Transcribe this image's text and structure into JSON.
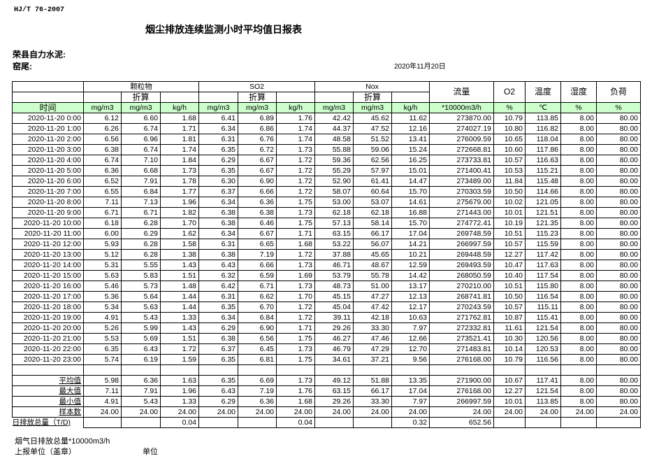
{
  "header": {
    "standard": "HJ/T  76-2007",
    "title": "烟尘排放连续监测小时平均值日报表",
    "company": "荣县自力水泥:",
    "kiln": "窑尾:",
    "date": "2020年11月20日"
  },
  "table": {
    "groups": {
      "particulate": "颗粒物",
      "so2": "SO2",
      "nox": "Nox",
      "flow": "流量",
      "o2": "O2",
      "temp": "温度",
      "humidity": "湿度",
      "load": "负荷"
    },
    "converted": "折算",
    "units": [
      "时间",
      "mg/m3",
      "mg/m3",
      "kg/h",
      "mg/m3",
      "mg/m3",
      "kg/h",
      "mg/m3",
      "mg/m3",
      "kg/h",
      "*10000m3/h",
      "%",
      "℃",
      "%",
      "%"
    ],
    "rows": [
      [
        "2020-11-20 0:00",
        "6.12",
        "6.60",
        "1.68",
        "6.41",
        "6.89",
        "1.76",
        "42.42",
        "45.62",
        "11.62",
        "273870.00",
        "10.79",
        "113.85",
        "8.00",
        "80.00"
      ],
      [
        "2020-11-20 1:00",
        "6.26",
        "6.74",
        "1.71",
        "6.34",
        "6.86",
        "1.74",
        "44.37",
        "47.52",
        "12.16",
        "274027.19",
        "10.80",
        "116.82",
        "8.00",
        "80.00"
      ],
      [
        "2020-11-20 2:00",
        "6.56",
        "6.96",
        "1.81",
        "6.31",
        "6.76",
        "1.74",
        "48.58",
        "51.52",
        "13.41",
        "276009.59",
        "10.65",
        "118.04",
        "8.00",
        "80.00"
      ],
      [
        "2020-11-20 3:00",
        "6.38",
        "6.74",
        "1.74",
        "6.35",
        "6.72",
        "1.73",
        "55.88",
        "59.06",
        "15.24",
        "272668.81",
        "10.60",
        "117.86",
        "8.00",
        "80.00"
      ],
      [
        "2020-11-20 4:00",
        "6.74",
        "7.10",
        "1.84",
        "6.29",
        "6.67",
        "1.72",
        "59.36",
        "62.56",
        "16.25",
        "273733.81",
        "10.57",
        "116.63",
        "8.00",
        "80.00"
      ],
      [
        "2020-11-20 5:00",
        "6.36",
        "6.68",
        "1.73",
        "6.35",
        "6.67",
        "1.72",
        "55.29",
        "57.97",
        "15.01",
        "271400.41",
        "10.53",
        "115.21",
        "8.00",
        "80.00"
      ],
      [
        "2020-11-20 6:00",
        "6.52",
        "7.91",
        "1.78",
        "6.30",
        "6.90",
        "1.72",
        "52.90",
        "61.41",
        "14.47",
        "273489.00",
        "11.84",
        "115.48",
        "8.00",
        "80.00"
      ],
      [
        "2020-11-20 7:00",
        "6.55",
        "6.84",
        "1.77",
        "6.37",
        "6.66",
        "1.72",
        "58.07",
        "60.64",
        "15.70",
        "270303.59",
        "10.50",
        "114.66",
        "8.00",
        "80.00"
      ],
      [
        "2020-11-20 8:00",
        "7.11",
        "7.13",
        "1.96",
        "6.34",
        "6.36",
        "1.75",
        "53.00",
        "53.07",
        "14.61",
        "275679.00",
        "10.02",
        "121.05",
        "8.00",
        "80.00"
      ],
      [
        "2020-11-20 9:00",
        "6.71",
        "6.71",
        "1.82",
        "6.38",
        "6.38",
        "1.73",
        "62.18",
        "62.18",
        "16.88",
        "271443.00",
        "10.01",
        "121.51",
        "8.00",
        "80.00"
      ],
      [
        "2020-11-20 10:00",
        "6.18",
        "6.28",
        "1.70",
        "6.38",
        "6.46",
        "1.75",
        "57.13",
        "58.14",
        "15.70",
        "274772.41",
        "10.19",
        "121.35",
        "8.00",
        "80.00"
      ],
      [
        "2020-11-20 11:00",
        "6.00",
        "6.29",
        "1.62",
        "6.34",
        "6.67",
        "1.71",
        "63.15",
        "66.17",
        "17.04",
        "269748.59",
        "10.51",
        "115.23",
        "8.00",
        "80.00"
      ],
      [
        "2020-11-20 12:00",
        "5.93",
        "6.28",
        "1.58",
        "6.31",
        "6.65",
        "1.68",
        "53.22",
        "56.07",
        "14.21",
        "266997.59",
        "10.57",
        "115.59",
        "8.00",
        "80.00"
      ],
      [
        "2020-11-20 13:00",
        "5.12",
        "6.28",
        "1.38",
        "6.38",
        "7.19",
        "1.72",
        "37.88",
        "45.65",
        "10.21",
        "269448.59",
        "12.27",
        "117.42",
        "8.00",
        "80.00"
      ],
      [
        "2020-11-20 14:00",
        "5.31",
        "5.55",
        "1.43",
        "6.43",
        "6.66",
        "1.73",
        "46.71",
        "48.67",
        "12.59",
        "269493.59",
        "10.47",
        "117.63",
        "8.00",
        "80.00"
      ],
      [
        "2020-11-20 15:00",
        "5.63",
        "5.83",
        "1.51",
        "6.32",
        "6.59",
        "1.69",
        "53.79",
        "55.78",
        "14.42",
        "268050.59",
        "10.40",
        "117.54",
        "8.00",
        "80.00"
      ],
      [
        "2020-11-20 16:00",
        "5.46",
        "5.73",
        "1.48",
        "6.42",
        "6.71",
        "1.73",
        "48.73",
        "51.00",
        "13.17",
        "270210.00",
        "10.51",
        "115.80",
        "8.00",
        "80.00"
      ],
      [
        "2020-11-20 17:00",
        "5.36",
        "5.64",
        "1.44",
        "6.31",
        "6.62",
        "1.70",
        "45.15",
        "47.27",
        "12.13",
        "268741.81",
        "10.50",
        "116.54",
        "8.00",
        "80.00"
      ],
      [
        "2020-11-20 18:00",
        "5.34",
        "5.63",
        "1.44",
        "6.35",
        "6.70",
        "1.72",
        "45.04",
        "47.42",
        "12.17",
        "270243.59",
        "10.57",
        "115.11",
        "8.00",
        "80.00"
      ],
      [
        "2020-11-20 19:00",
        "4.91",
        "5.43",
        "1.33",
        "6.34",
        "6.84",
        "1.72",
        "39.11",
        "42.18",
        "10.63",
        "271762.81",
        "10.87",
        "115.41",
        "8.00",
        "80.00"
      ],
      [
        "2020-11-20 20:00",
        "5.26",
        "5.99",
        "1.43",
        "6.29",
        "6.90",
        "1.71",
        "29.26",
        "33.30",
        "7.97",
        "272332.81",
        "11.61",
        "121.54",
        "8.00",
        "80.00"
      ],
      [
        "2020-11-20 21:00",
        "5.53",
        "5.69",
        "1.51",
        "6.38",
        "6.56",
        "1.75",
        "46.27",
        "47.46",
        "12.66",
        "273521.41",
        "10.30",
        "120.56",
        "8.00",
        "80.00"
      ],
      [
        "2020-11-20 22:00",
        "6.35",
        "6.43",
        "1.72",
        "6.37",
        "6.45",
        "1.73",
        "46.79",
        "47.29",
        "12.70",
        "271483.81",
        "10.14",
        "120.53",
        "8.00",
        "80.00"
      ],
      [
        "2020-11-20 23:00",
        "5.74",
        "6.19",
        "1.59",
        "6.35",
        "6.81",
        "1.75",
        "34.61",
        "37.21",
        "9.56",
        "276168.00",
        "10.79",
        "116.56",
        "8.00",
        "80.00"
      ]
    ],
    "summary": [
      [
        "平均值",
        "5.98",
        "6.36",
        "1.63",
        "6.35",
        "6.69",
        "1.73",
        "49.12",
        "51.88",
        "13.35",
        "271900.00",
        "10.67",
        "117.41",
        "8.00",
        "80.00"
      ],
      [
        "最大值",
        "7.11",
        "7.91",
        "1.96",
        "6.43",
        "7.19",
        "1.76",
        "63.15",
        "66.17",
        "17.04",
        "276168.00",
        "12.27",
        "121.54",
        "8.00",
        "80.00"
      ],
      [
        "最小值",
        "4.91",
        "5.43",
        "1.33",
        "6.29",
        "6.36",
        "1.68",
        "29.26",
        "33.30",
        "7.97",
        "266997.59",
        "10.01",
        "113.85",
        "8.00",
        "80.00"
      ],
      [
        "样本数",
        "24.00",
        "24.00",
        "24.00",
        "24.00",
        "24.00",
        "24.00",
        "24.00",
        "24.00",
        "24.00",
        "24.00",
        "24.00",
        "24.00",
        "24.00",
        "24.00"
      ]
    ],
    "daily_total": [
      "日排放总量（T/D)",
      "",
      "",
      "0.04",
      "",
      "",
      "0.04",
      "",
      "",
      "0.32",
      "652.56",
      "",
      "",
      "",
      ""
    ]
  },
  "footer": {
    "flue_gas_total": "烟气日排放总量*10000m3/h",
    "reporting_unit": "上报单位（盖章）",
    "unit": "单位"
  }
}
